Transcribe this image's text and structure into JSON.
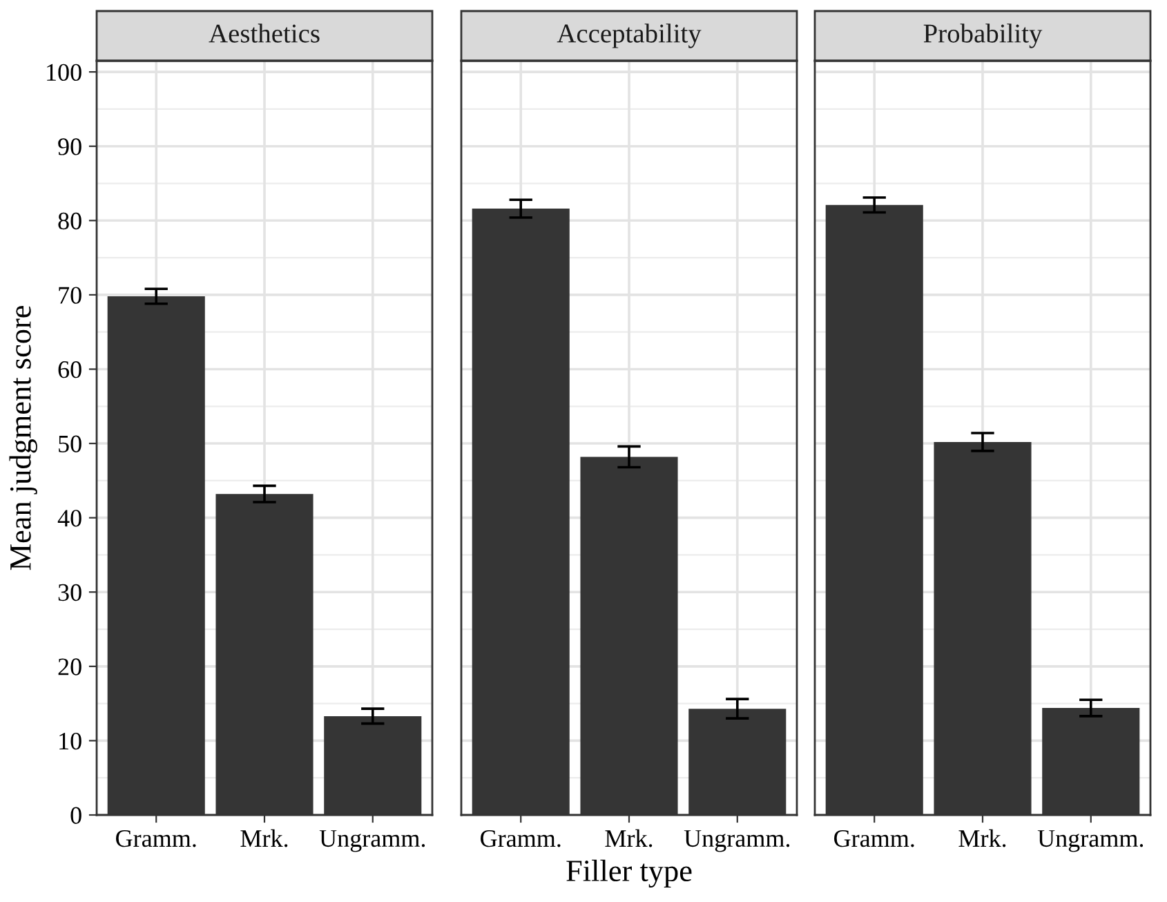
{
  "chart_data": [
    {
      "type": "bar",
      "title": "Aesthetics",
      "ylabel": "Mean judgment score",
      "categories": [
        "Gramm.",
        "Mrk.",
        "Ungramm."
      ],
      "values": [
        69.8,
        43.2,
        13.3
      ],
      "errors": [
        1.0,
        1.1,
        1.0
      ],
      "color": "#353535",
      "ylim": [
        0,
        101.5
      ],
      "yticks": [
        0,
        10,
        20,
        30,
        40,
        50,
        60,
        70,
        80,
        90,
        100
      ],
      "grid": true
    },
    {
      "type": "bar",
      "title": "Acceptability",
      "xlabel": "Filler type",
      "categories": [
        "Gramm.",
        "Mrk.",
        "Ungramm."
      ],
      "values": [
        81.6,
        48.2,
        14.3
      ],
      "errors": [
        1.2,
        1.4,
        1.3
      ],
      "color": "#353535",
      "ylim": [
        0,
        101.5
      ],
      "yticks": [
        0,
        10,
        20,
        30,
        40,
        50,
        60,
        70,
        80,
        90,
        100
      ],
      "grid": true,
      "tick_labels": "x"
    },
    {
      "type": "bar",
      "title": "Probability",
      "categories": [
        "Gramm.",
        "Mrk.",
        "Ungramm."
      ],
      "values": [
        82.1,
        50.2,
        14.4
      ],
      "errors": [
        1.0,
        1.2,
        1.1
      ],
      "color": "#353535",
      "ylim": [
        0,
        101.5
      ],
      "yticks": [
        0,
        10,
        20,
        30,
        40,
        50,
        60,
        70,
        80,
        90,
        100
      ],
      "grid": true,
      "tick_labels": "x"
    }
  ]
}
